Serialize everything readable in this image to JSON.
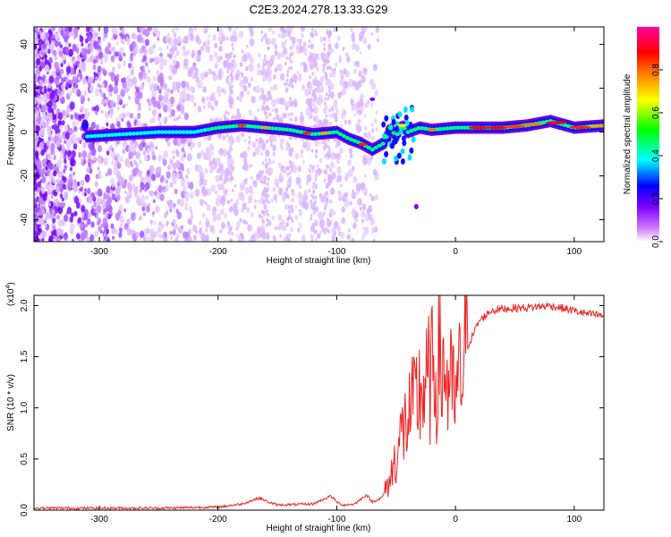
{
  "title": "C2E3.2024.278.13.33.G29",
  "chart_data": [
    {
      "type": "heatmap",
      "xlabel": "Height of straight line (km)",
      "ylabel": "Frequency (Hz)",
      "xlim": [
        -355,
        125
      ],
      "ylim": [
        -50,
        48
      ],
      "xticks": [
        -300,
        -200,
        -100,
        0,
        100
      ],
      "yticks": [
        -40,
        -20,
        0,
        20,
        40
      ],
      "colorbar": {
        "label": "Normalized spectral amplitude",
        "range": [
          0,
          1
        ],
        "ticks": [
          "0.0",
          "0.2",
          "0.4",
          "0.6",
          "0.8"
        ],
        "colors": [
          "#ffffff",
          "#d080ff",
          "#8000ff",
          "#0000ff",
          "#00ffff",
          "#00ff00",
          "#ffff00",
          "#ff8000",
          "#ff0000",
          "#ff00a0"
        ]
      },
      "ridge": {
        "x": [
          -310,
          -280,
          -250,
          -220,
          -200,
          -180,
          -160,
          -140,
          -120,
          -100,
          -90,
          -80,
          -70,
          -60,
          -55,
          -50,
          -45,
          -40,
          -30,
          -20,
          0,
          20,
          40,
          60,
          80,
          100,
          125
        ],
        "y": [
          -2,
          -1,
          0,
          0,
          2,
          3,
          2,
          1,
          -1,
          0,
          -3,
          -5,
          -8,
          -5,
          2,
          -2,
          3,
          0,
          2,
          1,
          2,
          2,
          2,
          3,
          5,
          2,
          3
        ]
      },
      "grid": false
    },
    {
      "type": "line",
      "xlabel": "Height of straight line (km)",
      "ylabel": "SNR (10 * v/v)",
      "yscale_label": "(x10",
      "yscale_exp": "4",
      "xlim": [
        -355,
        125
      ],
      "ylim": [
        0,
        2.1
      ],
      "xticks": [
        -300,
        -200,
        -100,
        0,
        100
      ],
      "yticks": [
        "0.0",
        "0.5",
        "1.0",
        "1.5",
        "2.0"
      ],
      "color": "#ee2222",
      "series": [
        {
          "x": [
            -355,
            -300,
            -250,
            -200,
            -180,
            -165,
            -158,
            -150,
            -120,
            -105,
            -100,
            -95,
            -85,
            -75,
            -70,
            -62,
            -55,
            -50,
            -45,
            -40,
            -35,
            -30,
            -25,
            -20,
            -15,
            -10,
            -5,
            0,
            5,
            10,
            20,
            30,
            40,
            60,
            80,
            100,
            110,
            125
          ],
          "y": [
            0.02,
            0.02,
            0.02,
            0.03,
            0.06,
            0.12,
            0.08,
            0.05,
            0.06,
            0.14,
            0.08,
            0.05,
            0.06,
            0.15,
            0.08,
            0.12,
            0.3,
            0.55,
            0.75,
            0.9,
            1.0,
            1.15,
            1.2,
            1.3,
            1.4,
            1.4,
            1.2,
            1.05,
            1.35,
            1.6,
            1.85,
            1.95,
            1.97,
            1.98,
            2.0,
            1.95,
            1.92,
            1.9
          ]
        }
      ],
      "grid": false
    }
  ]
}
